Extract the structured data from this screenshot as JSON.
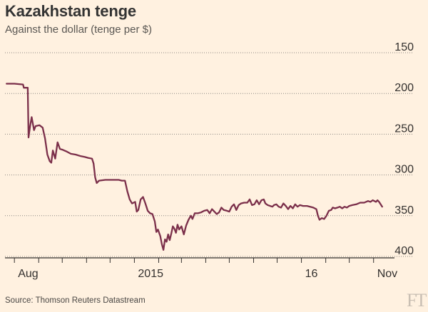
{
  "header": {
    "title": "Kazakhstan tenge",
    "subtitle": "Against the dollar (tenge per $)"
  },
  "footer": {
    "source": "Source: Thomson Reuters Datastream",
    "logo": "FT"
  },
  "colors": {
    "background": "#fff1e0",
    "line": "#7b2f4a",
    "grid": "#8c8782",
    "axis": "#33302e"
  },
  "chart_data": {
    "type": "line",
    "title": "Kazakhstan tenge",
    "subtitle": "Against the dollar (tenge per $)",
    "xlabel": "",
    "ylabel": "",
    "y_axis_side": "right",
    "y_inverted": true,
    "ylim": [
      150,
      400
    ],
    "yticks": [
      150,
      200,
      250,
      300,
      350,
      400
    ],
    "grid": "horizontal dotted",
    "xlim": [
      "2015-07-20",
      "2016-11-14"
    ],
    "xticks": [
      {
        "date": "2015-08-01",
        "label": "Aug"
      },
      {
        "date": "2015-09-01",
        "label": ""
      },
      {
        "date": "2015-10-01",
        "label": ""
      },
      {
        "date": "2015-11-01",
        "label": ""
      },
      {
        "date": "2015-12-01",
        "label": ""
      },
      {
        "date": "2016-01-01",
        "label": "2015"
      },
      {
        "date": "2016-02-01",
        "label": ""
      },
      {
        "date": "2016-03-01",
        "label": ""
      },
      {
        "date": "2016-04-01",
        "label": ""
      },
      {
        "date": "2016-05-01",
        "label": ""
      },
      {
        "date": "2016-06-01",
        "label": ""
      },
      {
        "date": "2016-07-01",
        "label": ""
      },
      {
        "date": "2016-08-01",
        "label": "16"
      },
      {
        "date": "2016-09-01",
        "label": ""
      },
      {
        "date": "2016-10-01",
        "label": ""
      },
      {
        "date": "2016-11-01",
        "label": "Nov"
      }
    ],
    "series": [
      {
        "values": [
          [
            "2015-07-22",
            188
          ],
          [
            "2015-08-01",
            188
          ],
          [
            "2015-08-12",
            189
          ],
          [
            "2015-08-13",
            193
          ],
          [
            "2015-08-18",
            193
          ],
          [
            "2015-08-19",
            254
          ],
          [
            "2015-08-21",
            240
          ],
          [
            "2015-08-23",
            229
          ],
          [
            "2015-08-26",
            245
          ],
          [
            "2015-08-28",
            240
          ],
          [
            "2015-09-02",
            239
          ],
          [
            "2015-09-06",
            242
          ],
          [
            "2015-09-09",
            255
          ],
          [
            "2015-09-12",
            275
          ],
          [
            "2015-09-15",
            283
          ],
          [
            "2015-09-17",
            285
          ],
          [
            "2015-09-19",
            270
          ],
          [
            "2015-09-22",
            280
          ],
          [
            "2015-09-25",
            260
          ],
          [
            "2015-09-28",
            268
          ],
          [
            "2015-10-01",
            269
          ],
          [
            "2015-10-06",
            271
          ],
          [
            "2015-10-12",
            274
          ],
          [
            "2015-10-18",
            275
          ],
          [
            "2015-10-25",
            277
          ],
          [
            "2015-10-30",
            278
          ],
          [
            "2015-11-03",
            279
          ],
          [
            "2015-11-08",
            280
          ],
          [
            "2015-11-10",
            286
          ],
          [
            "2015-11-12",
            303
          ],
          [
            "2015-11-14",
            310
          ],
          [
            "2015-11-17",
            307
          ],
          [
            "2015-11-25",
            306
          ],
          [
            "2015-12-05",
            306
          ],
          [
            "2015-12-12",
            306
          ],
          [
            "2015-12-16",
            307
          ],
          [
            "2015-12-20",
            307
          ],
          [
            "2015-12-23",
            320
          ],
          [
            "2015-12-26",
            330
          ],
          [
            "2015-12-29",
            335
          ],
          [
            "2016-01-02",
            333
          ],
          [
            "2016-01-04",
            345
          ],
          [
            "2016-01-06",
            343
          ],
          [
            "2016-01-09",
            330
          ],
          [
            "2016-01-12",
            327
          ],
          [
            "2016-01-15",
            335
          ],
          [
            "2016-01-18",
            344
          ],
          [
            "2016-01-21",
            347
          ],
          [
            "2016-01-24",
            348
          ],
          [
            "2016-01-27",
            357
          ],
          [
            "2016-01-29",
            370
          ],
          [
            "2016-01-31",
            367
          ],
          [
            "2016-02-03",
            375
          ],
          [
            "2016-02-05",
            385
          ],
          [
            "2016-02-07",
            392
          ],
          [
            "2016-02-09",
            379
          ],
          [
            "2016-02-11",
            382
          ],
          [
            "2016-02-13",
            373
          ],
          [
            "2016-02-15",
            380
          ],
          [
            "2016-02-17",
            372
          ],
          [
            "2016-02-19",
            363
          ],
          [
            "2016-02-21",
            366
          ],
          [
            "2016-02-23",
            371
          ],
          [
            "2016-02-25",
            361
          ],
          [
            "2016-02-27",
            367
          ],
          [
            "2016-03-01",
            363
          ],
          [
            "2016-03-04",
            373
          ],
          [
            "2016-03-07",
            362
          ],
          [
            "2016-03-10",
            355
          ],
          [
            "2016-03-13",
            350
          ],
          [
            "2016-03-15",
            354
          ],
          [
            "2016-03-18",
            347
          ],
          [
            "2016-03-22",
            347
          ],
          [
            "2016-03-26",
            346
          ],
          [
            "2016-03-30",
            344
          ],
          [
            "2016-04-03",
            343
          ],
          [
            "2016-04-06",
            347
          ],
          [
            "2016-04-09",
            342
          ],
          [
            "2016-04-12",
            345
          ],
          [
            "2016-04-15",
            348
          ],
          [
            "2016-04-18",
            346
          ],
          [
            "2016-04-21",
            340
          ],
          [
            "2016-04-24",
            343
          ],
          [
            "2016-04-28",
            344
          ],
          [
            "2016-05-01",
            345
          ],
          [
            "2016-05-04",
            339
          ],
          [
            "2016-05-07",
            336
          ],
          [
            "2016-05-10",
            343
          ],
          [
            "2016-05-13",
            337
          ],
          [
            "2016-05-16",
            335
          ],
          [
            "2016-05-20",
            334
          ],
          [
            "2016-05-24",
            334
          ],
          [
            "2016-05-27",
            330
          ],
          [
            "2016-05-30",
            337
          ],
          [
            "2016-06-02",
            336
          ],
          [
            "2016-06-05",
            331
          ],
          [
            "2016-06-08",
            336
          ],
          [
            "2016-06-11",
            331
          ],
          [
            "2016-06-14",
            330
          ],
          [
            "2016-06-16",
            335
          ],
          [
            "2016-06-19",
            337
          ],
          [
            "2016-06-22",
            338
          ],
          [
            "2016-06-25",
            339
          ],
          [
            "2016-06-27",
            337
          ],
          [
            "2016-06-30",
            336
          ],
          [
            "2016-07-03",
            339
          ],
          [
            "2016-07-06",
            340
          ],
          [
            "2016-07-09",
            335
          ],
          [
            "2016-07-12",
            338
          ],
          [
            "2016-07-15",
            342
          ],
          [
            "2016-07-18",
            338
          ],
          [
            "2016-07-21",
            341
          ],
          [
            "2016-07-24",
            336
          ],
          [
            "2016-07-27",
            339
          ],
          [
            "2016-07-30",
            337
          ],
          [
            "2016-08-03",
            338
          ],
          [
            "2016-08-08",
            338
          ],
          [
            "2016-08-12",
            339
          ],
          [
            "2016-08-16",
            340
          ],
          [
            "2016-08-20",
            342
          ],
          [
            "2016-08-22",
            350
          ],
          [
            "2016-08-24",
            355
          ],
          [
            "2016-08-27",
            353
          ],
          [
            "2016-08-30",
            354
          ],
          [
            "2016-09-02",
            350
          ],
          [
            "2016-09-05",
            344
          ],
          [
            "2016-09-08",
            343
          ],
          [
            "2016-09-10",
            340
          ],
          [
            "2016-09-13",
            341
          ],
          [
            "2016-09-16",
            340
          ],
          [
            "2016-09-19",
            339
          ],
          [
            "2016-09-22",
            341
          ],
          [
            "2016-09-25",
            339
          ],
          [
            "2016-09-28",
            340
          ],
          [
            "2016-10-01",
            338
          ],
          [
            "2016-10-05",
            337
          ],
          [
            "2016-10-10",
            336
          ],
          [
            "2016-10-15",
            334
          ],
          [
            "2016-10-20",
            334
          ],
          [
            "2016-10-25",
            332
          ],
          [
            "2016-10-28",
            333
          ],
          [
            "2016-10-31",
            331
          ],
          [
            "2016-11-02",
            332
          ],
          [
            "2016-11-04",
            333
          ],
          [
            "2016-11-06",
            331
          ],
          [
            "2016-11-08",
            333
          ],
          [
            "2016-11-10",
            336
          ],
          [
            "2016-11-12",
            339
          ]
        ]
      }
    ]
  }
}
